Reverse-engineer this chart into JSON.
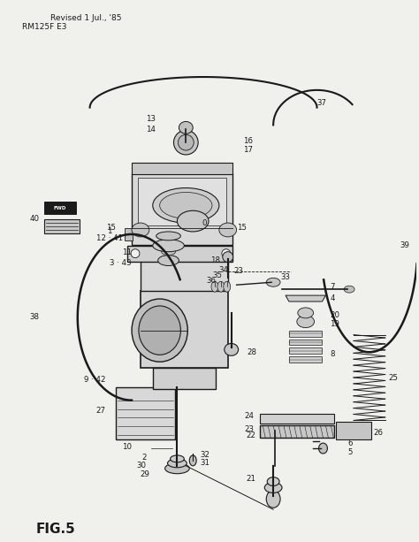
{
  "title": "FIG.5",
  "subtitle_left": "RM125F E3",
  "subtitle_right": "Revised 1 Jul., '85",
  "bg_color": "#f0f0ec",
  "fig_color": "#f0f0ec",
  "line_color": "#1a1a1a",
  "text_color": "#1a1a1a",
  "figsize": [
    4.74,
    6.13
  ],
  "dpi": 100
}
